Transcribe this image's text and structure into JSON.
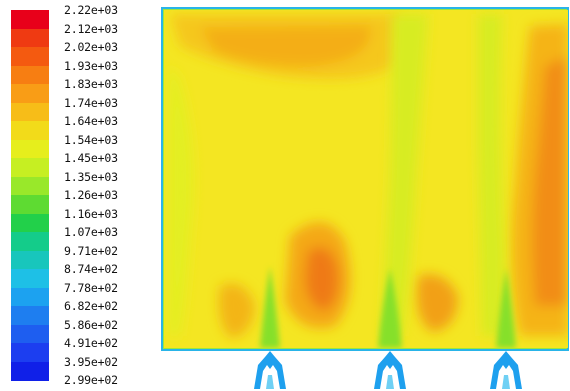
{
  "chart_data": {
    "type": "heatmap",
    "title": "",
    "xlabel": "",
    "ylabel": "",
    "colorbar": {
      "labels": [
        "2.22e+03",
        "2.12e+03",
        "2.02e+03",
        "1.93e+03",
        "1.83e+03",
        "1.74e+03",
        "1.64e+03",
        "1.54e+03",
        "1.45e+03",
        "1.35e+03",
        "1.26e+03",
        "1.16e+03",
        "1.07e+03",
        "9.71e+02",
        "8.74e+02",
        "7.78e+02",
        "6.82e+02",
        "5.86e+02",
        "4.91e+02",
        "3.95e+02",
        "2.99e+02"
      ],
      "values": [
        2220,
        2120,
        2020,
        1930,
        1830,
        1740,
        1640,
        1540,
        1450,
        1350,
        1260,
        1160,
        1070,
        971,
        874,
        778,
        682,
        586,
        491,
        395,
        299
      ],
      "colors": [
        "#e8001a",
        "#ef3a12",
        "#f45a10",
        "#f77e12",
        "#f99d16",
        "#f7bd18",
        "#f2db1a",
        "#e6ee1c",
        "#c6ef22",
        "#99e82a",
        "#5edb32",
        "#22d04a",
        "#14cc8a",
        "#18c6bc",
        "#1ec0e6",
        "#1ca2f0",
        "#1e7ef0",
        "#1e5ef0",
        "#1c3ef0",
        "#1020e8"
      ]
    },
    "field_summary": {
      "range": [
        299,
        2220
      ],
      "background_level": 1640,
      "hot_regions_level": 1930,
      "inlet_level": 874
    }
  }
}
